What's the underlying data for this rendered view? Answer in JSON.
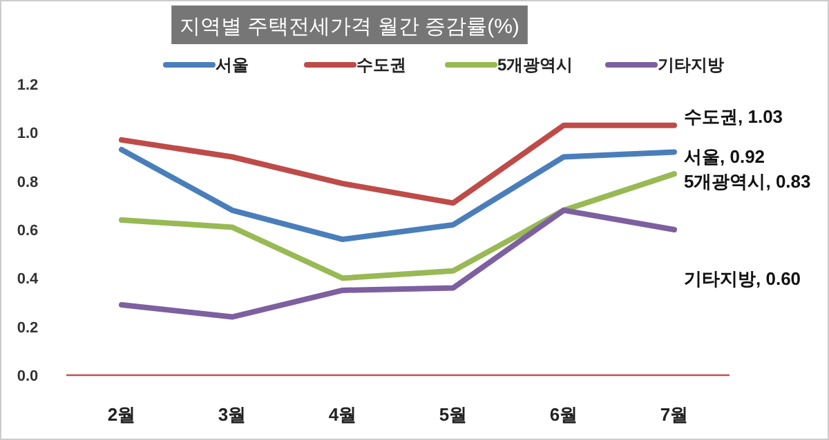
{
  "chart_data": {
    "type": "line",
    "title": "지역별 주택전세가격 월간 증감률(%)",
    "categories": [
      "2월",
      "3월",
      "4월",
      "5월",
      "6월",
      "7월"
    ],
    "series": [
      {
        "name": "서울",
        "color": "#4a7ebb",
        "values": [
          0.93,
          0.68,
          0.56,
          0.62,
          0.9,
          0.92
        ]
      },
      {
        "name": "수도권",
        "color": "#be4b48",
        "values": [
          0.97,
          0.9,
          0.79,
          0.71,
          1.03,
          1.03
        ]
      },
      {
        "name": "5개광역시",
        "color": "#98b954",
        "values": [
          0.64,
          0.61,
          0.4,
          0.43,
          0.68,
          0.83
        ]
      },
      {
        "name": "기타지방",
        "color": "#7d60a0",
        "values": [
          0.29,
          0.24,
          0.35,
          0.36,
          0.68,
          0.6
        ]
      }
    ],
    "ylim": [
      0,
      1.2
    ],
    "yticks": [
      {
        "value": 0,
        "label": "0.0"
      },
      {
        "value": 0.2,
        "label": "0.2"
      },
      {
        "value": 0.4,
        "label": "0.4"
      },
      {
        "value": 0.6,
        "label": "0.6"
      },
      {
        "value": 0.8,
        "label": "0.8"
      },
      {
        "value": 1.0,
        "label": "1.0"
      },
      {
        "value": 1.2,
        "label": "1.2"
      }
    ],
    "grid": false,
    "legend": "top",
    "marker": "none",
    "line_style": "solid",
    "annotations": [
      {
        "text": "수도권, 1.03",
        "x": "7월",
        "y": 1.03
      },
      {
        "text": "서울, 0.92",
        "x": "7월",
        "y": 0.92
      },
      {
        "text": "5개광역시, 0.83",
        "x": "7월",
        "y": 0.83
      },
      {
        "text": "기타지방, 0.60",
        "x": "7월",
        "y": 0.6
      }
    ]
  }
}
